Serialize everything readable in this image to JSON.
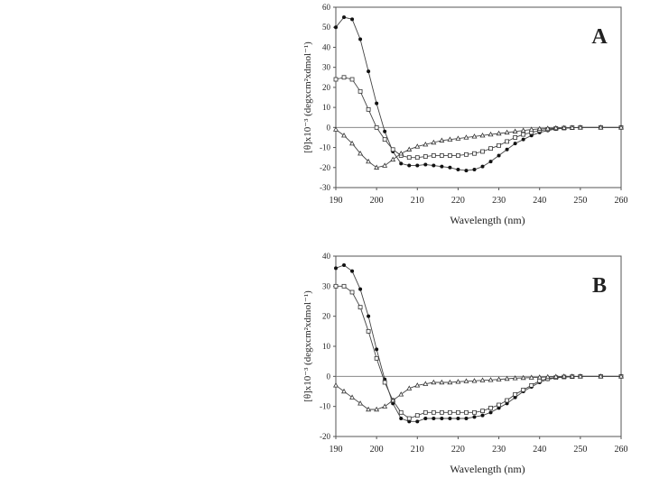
{
  "chart_data": [
    {
      "type": "line",
      "panel_label": "A",
      "xlabel": "Wavelength (nm)",
      "ylabel": "[θ]x10⁻³ (degxcm²xdmol⁻¹)",
      "xlim": [
        190,
        260
      ],
      "ylim": [
        -30,
        60
      ],
      "xticks": [
        190,
        200,
        210,
        220,
        230,
        240,
        250,
        260
      ],
      "yticks": [
        -30,
        -20,
        -10,
        0,
        10,
        20,
        30,
        40,
        50,
        60
      ],
      "grid": false,
      "legend": "none",
      "series": [
        {
          "marker": "filled-circle",
          "x": [
            190,
            192,
            194,
            196,
            198,
            200,
            202,
            204,
            206,
            208,
            210,
            212,
            214,
            216,
            218,
            220,
            222,
            224,
            226,
            228,
            230,
            232,
            234,
            236,
            238,
            240,
            242,
            244,
            246,
            248,
            250,
            255,
            260
          ],
          "y": [
            50,
            55,
            54,
            44,
            28,
            12,
            -2,
            -12,
            -18,
            -19,
            -19,
            -18.5,
            -19,
            -19.5,
            -20,
            -21,
            -21.5,
            -21,
            -19.5,
            -17,
            -14,
            -11,
            -8,
            -6,
            -4,
            -2.5,
            -1.5,
            -0.8,
            -0.4,
            -0.2,
            0,
            0,
            0
          ]
        },
        {
          "marker": "open-square",
          "x": [
            190,
            192,
            194,
            196,
            198,
            200,
            202,
            204,
            206,
            208,
            210,
            212,
            214,
            216,
            218,
            220,
            222,
            224,
            226,
            228,
            230,
            232,
            234,
            236,
            238,
            240,
            242,
            244,
            246,
            248,
            250,
            255,
            260
          ],
          "y": [
            24,
            25,
            24,
            18,
            9,
            0,
            -6,
            -11,
            -14,
            -15,
            -15,
            -14.5,
            -14,
            -14,
            -14,
            -14,
            -13.5,
            -13,
            -12,
            -10.5,
            -9,
            -7,
            -5,
            -3.5,
            -2.5,
            -1.5,
            -1,
            -0.5,
            -0.3,
            -0.1,
            0,
            0,
            0
          ]
        },
        {
          "marker": "open-triangle",
          "x": [
            190,
            192,
            194,
            196,
            198,
            200,
            202,
            204,
            206,
            208,
            210,
            212,
            214,
            216,
            218,
            220,
            222,
            224,
            226,
            228,
            230,
            232,
            234,
            236,
            238,
            240,
            242,
            244,
            246,
            248,
            250,
            255,
            260
          ],
          "y": [
            -1,
            -4,
            -8,
            -13,
            -17,
            -20,
            -19,
            -16,
            -13,
            -11,
            -9.5,
            -8.5,
            -7.5,
            -6.5,
            -6,
            -5.5,
            -5,
            -4.5,
            -4,
            -3.5,
            -3,
            -2.5,
            -2,
            -1.5,
            -1,
            -0.7,
            -0.5,
            -0.3,
            -0.2,
            -0.1,
            0,
            0,
            0
          ]
        }
      ]
    },
    {
      "type": "line",
      "panel_label": "B",
      "xlabel": "Wavelength (nm)",
      "ylabel": "[θ]x10⁻³ (degxcm²xdmol⁻¹)",
      "xlim": [
        190,
        260
      ],
      "ylim": [
        -20,
        40
      ],
      "xticks": [
        190,
        200,
        210,
        220,
        230,
        240,
        250,
        260
      ],
      "yticks": [
        -20,
        -10,
        0,
        10,
        20,
        30,
        40
      ],
      "grid": false,
      "legend": "none",
      "series": [
        {
          "marker": "filled-circle",
          "x": [
            190,
            192,
            194,
            196,
            198,
            200,
            202,
            204,
            206,
            208,
            210,
            212,
            214,
            216,
            218,
            220,
            222,
            224,
            226,
            228,
            230,
            232,
            234,
            236,
            238,
            240,
            242,
            244,
            246,
            248,
            250,
            255,
            260
          ],
          "y": [
            36,
            37,
            35,
            29,
            20,
            9,
            -1,
            -9,
            -14,
            -15,
            -15,
            -14,
            -14,
            -14,
            -14,
            -14,
            -14,
            -13.5,
            -13,
            -12,
            -10.5,
            -9,
            -7,
            -5,
            -3.5,
            -2,
            -1,
            -0.5,
            -0.2,
            -0.1,
            0,
            0,
            0
          ]
        },
        {
          "marker": "open-square",
          "x": [
            190,
            192,
            194,
            196,
            198,
            200,
            202,
            204,
            206,
            208,
            210,
            212,
            214,
            216,
            218,
            220,
            222,
            224,
            226,
            228,
            230,
            232,
            234,
            236,
            238,
            240,
            242,
            244,
            246,
            248,
            250,
            255,
            260
          ],
          "y": [
            30,
            30,
            28,
            23,
            15,
            6,
            -2,
            -8,
            -12,
            -14,
            -13,
            -12,
            -12,
            -12,
            -12,
            -12,
            -12,
            -12,
            -11.5,
            -10.5,
            -9.5,
            -8,
            -6,
            -4.5,
            -3,
            -1.5,
            -0.8,
            -0.4,
            -0.2,
            -0.1,
            0,
            0,
            0
          ]
        },
        {
          "marker": "open-triangle",
          "x": [
            190,
            192,
            194,
            196,
            198,
            200,
            202,
            204,
            206,
            208,
            210,
            212,
            214,
            216,
            218,
            220,
            222,
            224,
            226,
            228,
            230,
            232,
            234,
            236,
            238,
            240,
            242,
            244,
            246,
            248,
            250,
            255,
            260
          ],
          "y": [
            -3,
            -5,
            -7,
            -9,
            -11,
            -11,
            -10,
            -8,
            -6,
            -4,
            -3,
            -2.5,
            -2,
            -2,
            -2,
            -1.8,
            -1.6,
            -1.5,
            -1.3,
            -1.2,
            -1,
            -0.8,
            -0.6,
            -0.5,
            -0.4,
            -0.3,
            -0.2,
            -0.1,
            0,
            0,
            0,
            0,
            0
          ]
        }
      ]
    }
  ]
}
